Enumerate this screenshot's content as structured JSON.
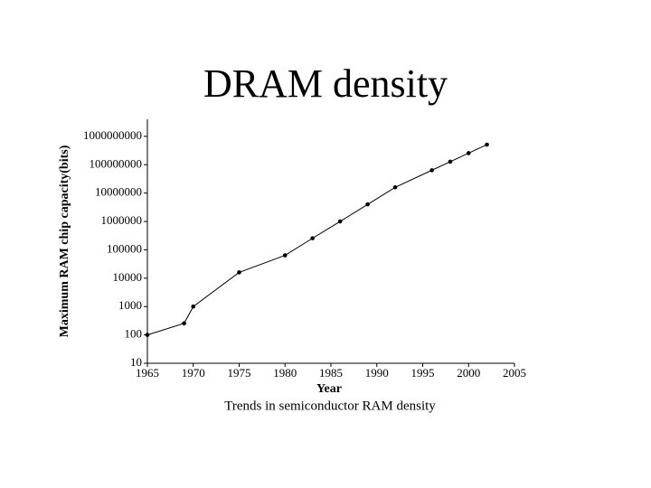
{
  "chart_data": {
    "type": "line",
    "title": "DRAM density",
    "x_label": "Year",
    "y_label": "Maximum RAM chip capacity(bits)",
    "caption": "Trends in semiconductor RAM density",
    "x": [
      1965,
      1969,
      1970,
      1975,
      1980,
      1983,
      1986,
      1989,
      1992,
      1996,
      1998,
      2000,
      2002
    ],
    "values": [
      100,
      256,
      1000,
      16000,
      64000,
      256000,
      1000000,
      4000000,
      16000000,
      64000000,
      128000000,
      256000000,
      512000000
    ],
    "color": "#000000",
    "yscale": "log",
    "xlim": [
      1965,
      2005
    ],
    "xticks": [
      1965,
      1970,
      1975,
      1980,
      1985,
      1990,
      1995,
      2000,
      2005
    ],
    "ylim": [
      10,
      4000000000
    ],
    "yticks": [
      10,
      100,
      1000,
      10000,
      100000,
      1000000,
      10000000,
      100000000,
      1000000000
    ],
    "grid": false
  }
}
